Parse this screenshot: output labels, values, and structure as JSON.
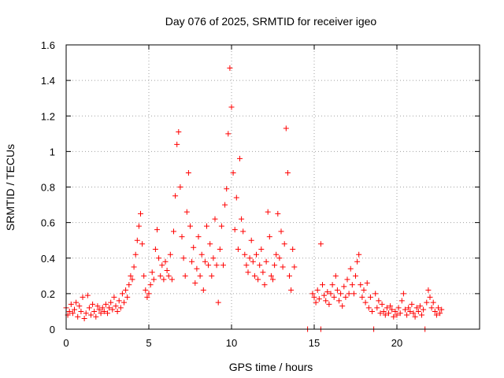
{
  "chart_data": {
    "type": "scatter",
    "title": "Day 076 of 2025, SRMTID for receiver igeo",
    "xlabel": "GPS time / hours",
    "ylabel": "SRMTID / TECUs",
    "xlim": [
      0,
      25
    ],
    "ylim": [
      0,
      1.6
    ],
    "xticks": [
      0,
      5,
      10,
      15,
      20
    ],
    "xtick_labels": [
      "0",
      "5",
      "10",
      "15",
      "20"
    ],
    "yticks": [
      0,
      0.2,
      0.4,
      0.6,
      0.8,
      1.0,
      1.2,
      1.4,
      1.6
    ],
    "ytick_labels": [
      "0",
      "0.2",
      "0.4",
      "0.6",
      "0.8",
      "1",
      "1.2",
      "1.4",
      "1.6"
    ],
    "grid": true,
    "marker": "+",
    "color": "#ff0000",
    "series": [
      {
        "name": "SRMTID",
        "points": [
          [
            0.0,
            0.12
          ],
          [
            0.1,
            0.08
          ],
          [
            0.2,
            0.1
          ],
          [
            0.3,
            0.14
          ],
          [
            0.4,
            0.09
          ],
          [
            0.5,
            0.11
          ],
          [
            0.6,
            0.15
          ],
          [
            0.7,
            0.07
          ],
          [
            0.8,
            0.13
          ],
          [
            0.9,
            0.1
          ],
          [
            1.0,
            0.18
          ],
          [
            1.1,
            0.06
          ],
          [
            1.2,
            0.09
          ],
          [
            1.3,
            0.19
          ],
          [
            1.4,
            0.12
          ],
          [
            1.5,
            0.08
          ],
          [
            1.6,
            0.14
          ],
          [
            1.7,
            0.1
          ],
          [
            1.8,
            0.07
          ],
          [
            1.9,
            0.13
          ],
          [
            2.0,
            0.11
          ],
          [
            2.1,
            0.09
          ],
          [
            2.2,
            0.12
          ],
          [
            2.3,
            0.1
          ],
          [
            2.4,
            0.14
          ],
          [
            2.5,
            0.09
          ],
          [
            2.6,
            0.12
          ],
          [
            2.7,
            0.15
          ],
          [
            2.8,
            0.11
          ],
          [
            2.9,
            0.18
          ],
          [
            3.0,
            0.13
          ],
          [
            3.1,
            0.1
          ],
          [
            3.2,
            0.16
          ],
          [
            3.3,
            0.12
          ],
          [
            3.4,
            0.2
          ],
          [
            3.5,
            0.15
          ],
          [
            3.6,
            0.22
          ],
          [
            3.7,
            0.18
          ],
          [
            3.8,
            0.25
          ],
          [
            3.9,
            0.3
          ],
          [
            4.0,
            0.28
          ],
          [
            4.1,
            0.35
          ],
          [
            4.2,
            0.42
          ],
          [
            4.3,
            0.5
          ],
          [
            4.4,
            0.58
          ],
          [
            4.5,
            0.65
          ],
          [
            4.6,
            0.48
          ],
          [
            4.7,
            0.3
          ],
          [
            4.8,
            0.22
          ],
          [
            4.9,
            0.18
          ],
          [
            5.0,
            0.2
          ],
          [
            5.1,
            0.25
          ],
          [
            5.2,
            0.32
          ],
          [
            5.3,
            0.28
          ],
          [
            5.4,
            0.45
          ],
          [
            5.5,
            0.56
          ],
          [
            5.6,
            0.4
          ],
          [
            5.7,
            0.3
          ],
          [
            5.8,
            0.36
          ],
          [
            5.9,
            0.28
          ],
          [
            6.0,
            0.38
          ],
          [
            6.1,
            0.33
          ],
          [
            6.2,
            0.3
          ],
          [
            6.3,
            0.42
          ],
          [
            6.4,
            0.28
          ],
          [
            6.5,
            0.55
          ],
          [
            6.6,
            0.75
          ],
          [
            6.7,
            1.04
          ],
          [
            6.8,
            1.11
          ],
          [
            6.9,
            0.8
          ],
          [
            7.0,
            0.52
          ],
          [
            7.1,
            0.4
          ],
          [
            7.2,
            0.3
          ],
          [
            7.3,
            0.66
          ],
          [
            7.4,
            0.88
          ],
          [
            7.5,
            0.58
          ],
          [
            7.6,
            0.38
          ],
          [
            7.7,
            0.46
          ],
          [
            7.8,
            0.26
          ],
          [
            7.9,
            0.34
          ],
          [
            8.0,
            0.52
          ],
          [
            8.1,
            0.3
          ],
          [
            8.2,
            0.42
          ],
          [
            8.3,
            0.22
          ],
          [
            8.4,
            0.38
          ],
          [
            8.5,
            0.58
          ],
          [
            8.6,
            0.36
          ],
          [
            8.7,
            0.48
          ],
          [
            8.8,
            0.3
          ],
          [
            8.9,
            0.4
          ],
          [
            9.0,
            0.62
          ],
          [
            9.1,
            0.36
          ],
          [
            9.2,
            0.15
          ],
          [
            9.3,
            0.45
          ],
          [
            9.4,
            0.58
          ],
          [
            9.5,
            0.36
          ],
          [
            9.6,
            0.7
          ],
          [
            9.7,
            0.79
          ],
          [
            9.8,
            1.1
          ],
          [
            9.9,
            1.47
          ],
          [
            10.0,
            1.25
          ],
          [
            10.1,
            0.88
          ],
          [
            10.2,
            0.56
          ],
          [
            10.3,
            0.74
          ],
          [
            10.4,
            0.45
          ],
          [
            10.5,
            0.96
          ],
          [
            10.6,
            0.62
          ],
          [
            10.7,
            0.55
          ],
          [
            10.8,
            0.42
          ],
          [
            10.9,
            0.36
          ],
          [
            11.0,
            0.32
          ],
          [
            11.1,
            0.4
          ],
          [
            11.2,
            0.5
          ],
          [
            11.3,
            0.38
          ],
          [
            11.4,
            0.3
          ],
          [
            11.5,
            0.42
          ],
          [
            11.6,
            0.28
          ],
          [
            11.7,
            0.36
          ],
          [
            11.8,
            0.45
          ],
          [
            11.9,
            0.32
          ],
          [
            12.0,
            0.25
          ],
          [
            12.1,
            0.38
          ],
          [
            12.2,
            0.66
          ],
          [
            12.3,
            0.52
          ],
          [
            12.4,
            0.3
          ],
          [
            12.5,
            0.28
          ],
          [
            12.6,
            0.36
          ],
          [
            12.7,
            0.42
          ],
          [
            12.8,
            0.65
          ],
          [
            12.9,
            0.4
          ],
          [
            13.0,
            0.55
          ],
          [
            13.1,
            0.35
          ],
          [
            13.2,
            0.48
          ],
          [
            13.3,
            1.13
          ],
          [
            13.4,
            0.88
          ],
          [
            13.5,
            0.3
          ],
          [
            13.6,
            0.22
          ],
          [
            13.7,
            0.45
          ],
          [
            13.8,
            0.35
          ],
          [
            14.6,
            0.0
          ],
          [
            15.4,
            0.0
          ],
          [
            14.9,
            0.2
          ],
          [
            15.0,
            0.18
          ],
          [
            15.1,
            0.15
          ],
          [
            15.2,
            0.22
          ],
          [
            15.3,
            0.17
          ],
          [
            15.4,
            0.48
          ],
          [
            15.5,
            0.25
          ],
          [
            15.6,
            0.19
          ],
          [
            15.7,
            0.16
          ],
          [
            15.8,
            0.21
          ],
          [
            15.9,
            0.14
          ],
          [
            16.0,
            0.2
          ],
          [
            16.1,
            0.25
          ],
          [
            16.2,
            0.18
          ],
          [
            16.3,
            0.3
          ],
          [
            16.4,
            0.22
          ],
          [
            16.5,
            0.16
          ],
          [
            16.6,
            0.2
          ],
          [
            16.7,
            0.13
          ],
          [
            16.8,
            0.24
          ],
          [
            16.9,
            0.18
          ],
          [
            17.0,
            0.28
          ],
          [
            17.1,
            0.2
          ],
          [
            17.2,
            0.34
          ],
          [
            17.3,
            0.25
          ],
          [
            17.4,
            0.2
          ],
          [
            17.5,
            0.3
          ],
          [
            17.6,
            0.38
          ],
          [
            17.7,
            0.42
          ],
          [
            17.8,
            0.25
          ],
          [
            17.9,
            0.18
          ],
          [
            18.0,
            0.22
          ],
          [
            18.1,
            0.15
          ],
          [
            18.2,
            0.26
          ],
          [
            18.3,
            0.12
          ],
          [
            18.4,
            0.18
          ],
          [
            18.5,
            0.1
          ],
          [
            18.6,
            0.0
          ],
          [
            18.7,
            0.2
          ],
          [
            18.8,
            0.12
          ],
          [
            18.9,
            0.16
          ],
          [
            19.0,
            0.09
          ],
          [
            19.1,
            0.14
          ],
          [
            19.2,
            0.1
          ],
          [
            19.3,
            0.08
          ],
          [
            19.4,
            0.12
          ],
          [
            19.5,
            0.09
          ],
          [
            19.6,
            0.13
          ],
          [
            19.7,
            0.11
          ],
          [
            19.8,
            0.07
          ],
          [
            19.9,
            0.1
          ],
          [
            20.0,
            0.08
          ],
          [
            20.1,
            0.12
          ],
          [
            20.2,
            0.09
          ],
          [
            20.3,
            0.16
          ],
          [
            20.4,
            0.2
          ],
          [
            20.5,
            0.11
          ],
          [
            20.6,
            0.08
          ],
          [
            20.7,
            0.12
          ],
          [
            20.8,
            0.1
          ],
          [
            20.9,
            0.14
          ],
          [
            21.0,
            0.09
          ],
          [
            21.1,
            0.07
          ],
          [
            21.2,
            0.12
          ],
          [
            21.3,
            0.1
          ],
          [
            21.4,
            0.13
          ],
          [
            21.5,
            0.08
          ],
          [
            21.6,
            0.11
          ],
          [
            21.7,
            0.0
          ],
          [
            21.8,
            0.15
          ],
          [
            21.9,
            0.22
          ],
          [
            22.0,
            0.18
          ],
          [
            22.1,
            0.12
          ],
          [
            22.2,
            0.15
          ],
          [
            22.3,
            0.1
          ],
          [
            22.4,
            0.08
          ],
          [
            22.5,
            0.12
          ],
          [
            22.6,
            0.09
          ],
          [
            22.7,
            0.11
          ]
        ]
      }
    ]
  }
}
